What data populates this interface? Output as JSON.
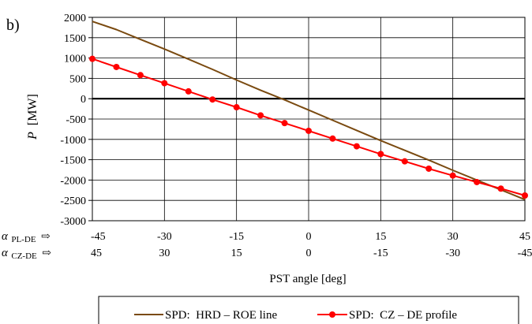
{
  "chart_data": {
    "type": "line",
    "panel_label": "b)",
    "ylabel_var": "P",
    "ylabel_unit": "[MW]",
    "xlabel": "PST angle [deg]",
    "ylim": [
      -3000,
      2000
    ],
    "yticks": [
      2000,
      1500,
      1000,
      500,
      0,
      -500,
      -1000,
      -1500,
      -2000,
      -2500,
      -3000
    ],
    "x_domain": [
      -45,
      45
    ],
    "x_ticks": [
      -45,
      -30,
      -15,
      0,
      15,
      30,
      45
    ],
    "grid": true,
    "axis_pl": {
      "label_var": "α",
      "label_sub": "PL-DE",
      "arrow": "⇨",
      "ticks": [
        "-45",
        "-30",
        "-15",
        "0",
        "15",
        "30",
        "45"
      ]
    },
    "axis_cz": {
      "label_var": "α",
      "label_sub": "CZ-DE",
      "arrow": "⇨",
      "ticks": [
        "45",
        "30",
        "15",
        "0",
        "-15",
        "-30",
        "-45"
      ]
    },
    "legend_position": "bottom",
    "series": [
      {
        "name": "SPD:  HRD – ROE line",
        "color": "#7a4a10",
        "marker": "none",
        "x": [
          -45,
          -40,
          -35,
          -30,
          -25,
          -20,
          -15,
          -10,
          -5,
          0,
          5,
          10,
          15,
          20,
          25,
          30,
          35,
          40,
          45
        ],
        "y": [
          1900,
          1700,
          1460,
          1220,
          970,
          720,
          460,
          210,
          -30,
          -280,
          -530,
          -780,
          -1030,
          -1270,
          -1510,
          -1760,
          -2000,
          -2240,
          -2480
        ]
      },
      {
        "name": "SPD:  CZ – DE profile",
        "color": "#ff0000",
        "marker": "circle",
        "x": [
          -45,
          -40,
          -35,
          -30,
          -25,
          -20,
          -15,
          -10,
          -5,
          0,
          5,
          10,
          15,
          20,
          25,
          30,
          35,
          40,
          45
        ],
        "y": [
          980,
          780,
          580,
          380,
          180,
          -20,
          -210,
          -410,
          -600,
          -790,
          -980,
          -1170,
          -1360,
          -1540,
          -1720,
          -1890,
          -2050,
          -2210,
          -2380
        ]
      }
    ]
  }
}
